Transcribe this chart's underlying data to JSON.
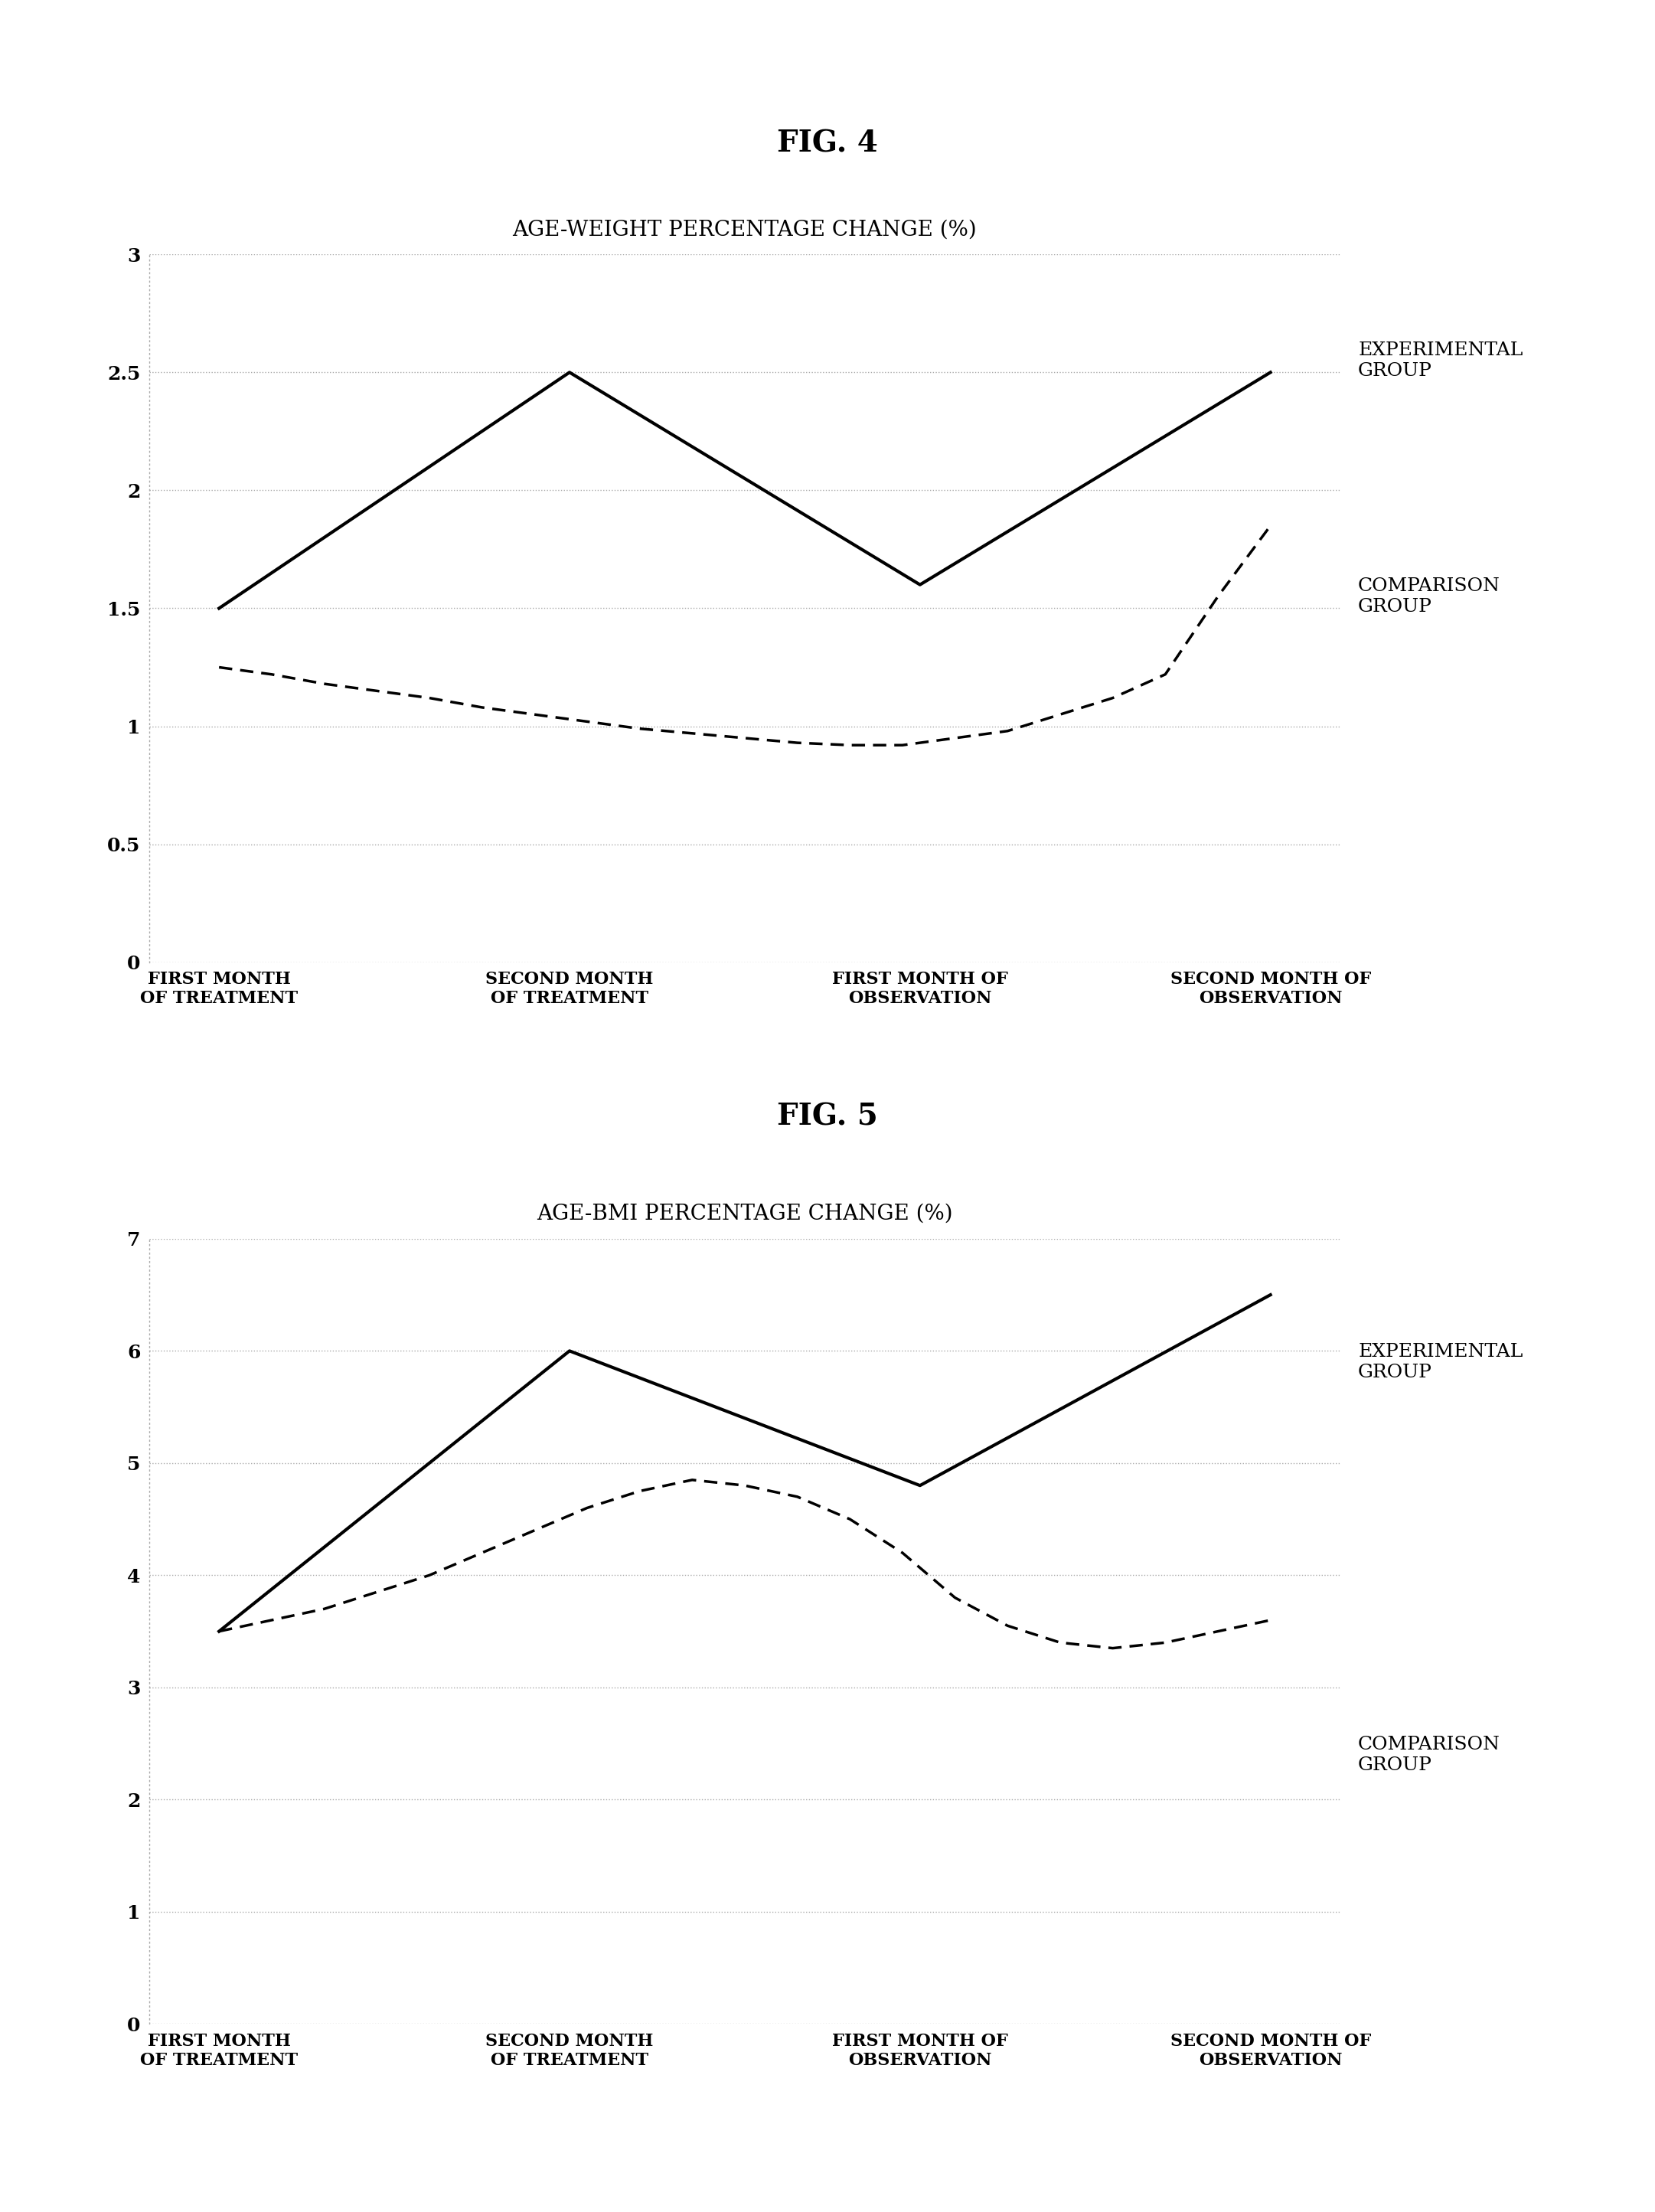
{
  "fig4_title": "FIG. 4",
  "fig5_title": "FIG. 5",
  "chart1_title": "AGE-WEIGHT PERCENTAGE CHANGE (%)",
  "chart2_title": "AGE-BMI PERCENTAGE CHANGE (%)",
  "x_labels": [
    "FIRST MONTH\nOF TREATMENT",
    "SECOND MONTH\nOF TREATMENT",
    "FIRST MONTH OF\nOBSERVATION",
    "SECOND MONTH OF\nOBSERVATION"
  ],
  "chart1_exp": [
    1.5,
    2.5,
    1.6,
    2.5
  ],
  "chart1_comp_x": [
    0,
    0.15,
    0.3,
    0.45,
    0.6,
    0.75,
    0.9,
    1.05,
    1.2,
    1.35,
    1.5,
    1.65,
    1.8,
    1.95,
    2.1,
    2.25,
    2.4,
    2.55,
    2.7,
    2.85,
    3.0
  ],
  "chart1_comp_y": [
    1.25,
    1.22,
    1.18,
    1.15,
    1.12,
    1.08,
    1.05,
    1.02,
    0.99,
    0.97,
    0.95,
    0.93,
    0.92,
    0.92,
    0.95,
    0.98,
    1.05,
    1.12,
    1.22,
    1.55,
    1.85
  ],
  "chart1_ylim": [
    0,
    3.0
  ],
  "chart1_yticks": [
    0,
    0.5,
    1.0,
    1.5,
    2.0,
    2.5,
    3.0
  ],
  "chart1_ytick_labels": [
    "0",
    "0.5",
    "1",
    "1.5",
    "2",
    "2.5",
    "3"
  ],
  "chart2_exp": [
    3.5,
    6.0,
    4.8,
    6.5
  ],
  "chart2_comp_x": [
    0,
    0.15,
    0.3,
    0.45,
    0.6,
    0.75,
    0.9,
    1.05,
    1.2,
    1.35,
    1.5,
    1.65,
    1.8,
    1.95,
    2.1,
    2.25,
    2.4,
    2.55,
    2.7,
    2.85,
    3.0
  ],
  "chart2_comp_y": [
    3.5,
    3.6,
    3.7,
    3.85,
    4.0,
    4.2,
    4.4,
    4.6,
    4.75,
    4.85,
    4.8,
    4.7,
    4.5,
    4.2,
    3.8,
    3.55,
    3.4,
    3.35,
    3.4,
    3.5,
    3.6
  ],
  "chart2_ylim": [
    0,
    7.0
  ],
  "chart2_yticks": [
    0,
    1,
    2,
    3,
    4,
    5,
    6,
    7
  ],
  "chart2_ytick_labels": [
    "0",
    "1",
    "2",
    "3",
    "4",
    "5",
    "6",
    "7"
  ],
  "exp_label": "EXPERIMENTAL\nGROUP",
  "comp_label": "COMPARISON\nGROUP",
  "line_color": "#000000",
  "background_color": "#ffffff",
  "fig_title_fontsize": 28,
  "chart_title_fontsize": 20,
  "tick_fontsize": 18,
  "annotation_fontsize": 18
}
